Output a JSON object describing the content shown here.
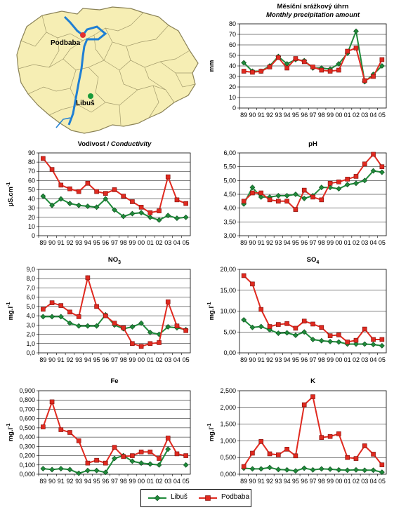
{
  "map": {
    "labels": [
      {
        "id": "podbaba",
        "text": "Podbaba"
      },
      {
        "id": "libus",
        "text": "Libuš"
      }
    ],
    "colors": {
      "fill": "#f6eeb4",
      "border": "#8a8256",
      "river": "#1f7fd4",
      "podbaba": "#e03030",
      "libus": "#1a9a3a"
    }
  },
  "legend": [
    {
      "name": "Libuš",
      "color": "#1f8a3a",
      "marker": "diamond"
    },
    {
      "name": "Podbaba",
      "color": "#e02a20",
      "marker": "square"
    }
  ],
  "chart_data": [
    {
      "id": "precip",
      "type": "line",
      "title": "Měsíční srážkový úhrn",
      "subtitle": "Monthly precipitation amount",
      "ylabel": "mm",
      "ylim": [
        0,
        80
      ],
      "yticks": [
        "0",
        "10",
        "20",
        "30",
        "40",
        "50",
        "60",
        "70",
        "80"
      ],
      "categories": [
        "89",
        "90",
        "91",
        "92",
        "93",
        "94",
        "95",
        "96",
        "97",
        "98",
        "99",
        "00",
        "01",
        "02",
        "03",
        "04",
        "05"
      ],
      "series": [
        {
          "name": "Libuš",
          "values": [
            43,
            35,
            35,
            40,
            49,
            42,
            46,
            45,
            38,
            38,
            37,
            42,
            52,
            73,
            25,
            32,
            40
          ]
        },
        {
          "name": "Podbaba",
          "values": [
            35,
            34,
            35,
            39,
            48,
            38,
            47,
            44,
            39,
            36,
            35,
            36,
            54,
            57,
            26,
            30,
            46
          ]
        }
      ]
    },
    {
      "id": "cond",
      "type": "line",
      "title": "Vodivost / ",
      "title_italic": "Conductivity",
      "ylabel": "µS.cm",
      "ylabel_sup": "-1",
      "ylim": [
        0,
        90
      ],
      "yticks": [
        "0",
        "10",
        "20",
        "30",
        "40",
        "50",
        "60",
        "70",
        "80",
        "90"
      ],
      "categories": [
        "89",
        "90",
        "91",
        "92",
        "93",
        "94",
        "95",
        "96",
        "97",
        "98",
        "99",
        "00",
        "01",
        "02",
        "03",
        "04",
        "05"
      ],
      "series": [
        {
          "name": "Libuš",
          "values": [
            43,
            33,
            40,
            35,
            33,
            32,
            31,
            40,
            28,
            21,
            24,
            25,
            20,
            17,
            22,
            19,
            20
          ]
        },
        {
          "name": "Podbaba",
          "values": [
            84,
            72,
            55,
            51,
            48,
            57,
            48,
            46,
            50,
            43,
            37,
            31,
            25,
            27,
            64,
            39,
            35
          ]
        }
      ]
    },
    {
      "id": "ph",
      "type": "line",
      "title": "pH",
      "ylabel": "",
      "ylim": [
        3.0,
        6.0
      ],
      "yticks": [
        "3,00",
        "3,50",
        "4,00",
        "4,50",
        "5,00",
        "5,50",
        "6,00"
      ],
      "categories": [
        "89",
        "90",
        "91",
        "92",
        "93",
        "94",
        "95",
        "96",
        "97",
        "98",
        "99",
        "00",
        "01",
        "02",
        "03",
        "04",
        "05"
      ],
      "series": [
        {
          "name": "Libuš",
          "values": [
            4.15,
            4.75,
            4.4,
            4.4,
            4.45,
            4.45,
            4.5,
            4.35,
            4.45,
            4.75,
            4.75,
            4.7,
            4.85,
            4.9,
            5.0,
            5.35,
            5.3
          ]
        },
        {
          "name": "Podbaba",
          "values": [
            4.25,
            4.55,
            4.55,
            4.3,
            4.25,
            4.25,
            3.95,
            4.65,
            4.4,
            4.3,
            4.9,
            4.95,
            5.05,
            5.15,
            5.6,
            5.95,
            5.5
          ]
        }
      ]
    },
    {
      "id": "no3",
      "type": "line",
      "title": "NO",
      "title_sub": "3",
      "ylabel": "mg.l",
      "ylabel_sup": "-1",
      "ylim": [
        0,
        9
      ],
      "yticks": [
        "0,0",
        "1,0",
        "2,0",
        "3,0",
        "4,0",
        "5,0",
        "6,0",
        "7,0",
        "8,0",
        "9,0"
      ],
      "categories": [
        "89",
        "90",
        "91",
        "92",
        "93",
        "94",
        "95",
        "96",
        "97",
        "98",
        "99",
        "00",
        "01",
        "02",
        "03",
        "04",
        "05"
      ],
      "series": [
        {
          "name": "Libuš",
          "values": [
            3.9,
            3.9,
            3.9,
            3.2,
            2.9,
            2.9,
            2.9,
            4.1,
            3.0,
            2.6,
            2.8,
            3.2,
            2.2,
            2.0,
            2.8,
            2.7,
            2.5
          ]
        },
        {
          "name": "Podbaba",
          "values": [
            4.7,
            5.4,
            5.1,
            4.4,
            3.9,
            8.1,
            5.0,
            4.0,
            3.2,
            2.7,
            1.0,
            0.7,
            1.0,
            1.1,
            5.5,
            2.9,
            2.4
          ]
        }
      ]
    },
    {
      "id": "so4",
      "type": "line",
      "title": "SO",
      "title_sub": "4",
      "ylabel": "mg.l",
      "ylabel_sup": "-1",
      "ylim": [
        0,
        20
      ],
      "yticks": [
        "0,00",
        "5,00",
        "10,00",
        "15,00",
        "20,00"
      ],
      "categories": [
        "89",
        "90",
        "91",
        "92",
        "93",
        "94",
        "95",
        "96",
        "97",
        "98",
        "99",
        "00",
        "01",
        "02",
        "03",
        "04",
        "05"
      ],
      "series": [
        {
          "name": "Libuš",
          "values": [
            7.9,
            6.1,
            6.3,
            5.5,
            4.7,
            4.8,
            4.2,
            5.0,
            3.2,
            2.9,
            2.7,
            2.6,
            2.1,
            2.1,
            2.1,
            2.0,
            1.7
          ]
        },
        {
          "name": "Podbaba",
          "values": [
            18.5,
            16.5,
            10.4,
            6.3,
            6.8,
            7.0,
            5.9,
            7.6,
            6.9,
            6.1,
            4.1,
            4.3,
            2.6,
            3.0,
            5.7,
            3.2,
            3.2
          ]
        }
      ]
    },
    {
      "id": "fe",
      "type": "line",
      "title": "Fe",
      "ylabel": "mg.l",
      "ylabel_sup": "-1",
      "ylim": [
        0,
        0.9
      ],
      "yticks": [
        "0,000",
        "0,100",
        "0,200",
        "0,300",
        "0,400",
        "0,500",
        "0,600",
        "0,700",
        "0,800",
        "0,900"
      ],
      "categories": [
        "89",
        "90",
        "91",
        "92",
        "93",
        "94",
        "95",
        "96",
        "97",
        "98",
        "99",
        "00",
        "01",
        "02",
        "03",
        "04",
        "05"
      ],
      "series": [
        {
          "name": "Libuš",
          "values": [
            0.06,
            0.05,
            0.06,
            0.05,
            0.01,
            0.04,
            0.04,
            0.02,
            0.17,
            0.2,
            0.14,
            0.12,
            0.11,
            0.1,
            0.27,
            null,
            0.1
          ]
        },
        {
          "name": "Podbaba",
          "values": [
            0.51,
            0.78,
            0.48,
            0.45,
            0.36,
            0.12,
            0.15,
            0.12,
            0.29,
            0.19,
            0.2,
            0.24,
            0.24,
            0.17,
            0.39,
            0.22,
            0.2
          ]
        }
      ]
    },
    {
      "id": "k",
      "type": "line",
      "title": "K",
      "ylabel": "mg.l",
      "ylabel_sup": "-1",
      "ylim": [
        0,
        2.5
      ],
      "yticks": [
        "0,000",
        "0,500",
        "1,000",
        "1,500",
        "2,000",
        "2,500"
      ],
      "categories": [
        "89",
        "90",
        "91",
        "92",
        "93",
        "94",
        "95",
        "96",
        "97",
        "98",
        "99",
        "00",
        "01",
        "02",
        "03",
        "04",
        "05"
      ],
      "series": [
        {
          "name": "Libuš",
          "values": [
            0.18,
            0.16,
            0.16,
            0.2,
            0.14,
            0.13,
            0.1,
            0.18,
            0.13,
            0.16,
            0.15,
            0.13,
            0.12,
            0.13,
            0.12,
            0.12,
            0.06
          ]
        },
        {
          "name": "Podbaba",
          "values": [
            0.23,
            0.63,
            0.98,
            0.61,
            0.58,
            0.75,
            0.55,
            2.08,
            2.32,
            1.1,
            1.13,
            1.21,
            0.5,
            0.47,
            0.85,
            0.6,
            0.28
          ]
        }
      ]
    }
  ]
}
